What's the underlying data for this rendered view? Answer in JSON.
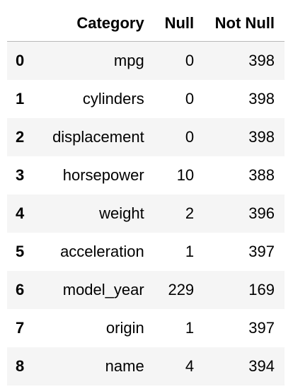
{
  "table": {
    "headers": [
      "",
      "Category",
      "Null",
      "Not Null"
    ],
    "rows": [
      {
        "index": "0",
        "category": "mpg",
        "null": "0",
        "not_null": "398"
      },
      {
        "index": "1",
        "category": "cylinders",
        "null": "0",
        "not_null": "398"
      },
      {
        "index": "2",
        "category": "displacement",
        "null": "0",
        "not_null": "398"
      },
      {
        "index": "3",
        "category": "horsepower",
        "null": "10",
        "not_null": "388"
      },
      {
        "index": "4",
        "category": "weight",
        "null": "2",
        "not_null": "396"
      },
      {
        "index": "5",
        "category": "acceleration",
        "null": "1",
        "not_null": "397"
      },
      {
        "index": "6",
        "category": "model_year",
        "null": "229",
        "not_null": "169"
      },
      {
        "index": "7",
        "category": "origin",
        "null": "1",
        "not_null": "397"
      },
      {
        "index": "8",
        "category": "name",
        "null": "4",
        "not_null": "394"
      }
    ]
  },
  "colors": {
    "stripe": "#f5f5f5",
    "header_rule": "#b8b8b8",
    "text": "#000000"
  }
}
